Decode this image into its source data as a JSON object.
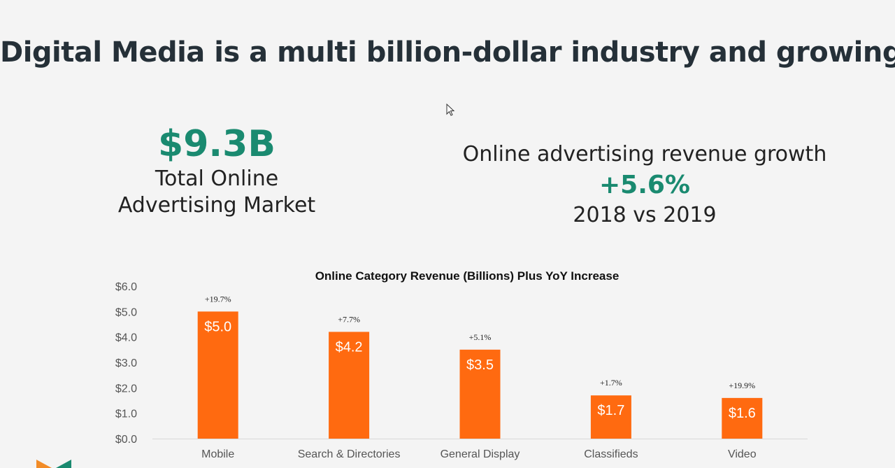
{
  "slide": {
    "title": "Digital Media is a multi billion-dollar industry and growing",
    "market_value": "$9.3B",
    "market_label_line1": "Total Online",
    "market_label_line2": "Advertising Market",
    "growth_heading": "Online advertising revenue growth",
    "growth_value": "+5.6%",
    "growth_period": "2018 vs 2019"
  },
  "colors": {
    "bar": "#ff6a10",
    "accent": "#1a8a70",
    "logo_orange": "#f28c28",
    "logo_teal": "#1a8a70"
  },
  "chart_data": {
    "type": "bar",
    "title": "Online Category Revenue (Billions) Plus YoY Increase",
    "xlabel": "",
    "ylabel": "",
    "categories": [
      "Mobile",
      "Search & Directories",
      "General Display",
      "Classifieds",
      "Video"
    ],
    "values": [
      5.0,
      4.2,
      3.5,
      1.7,
      1.6
    ],
    "value_labels": [
      "$5.0",
      "$4.2",
      "$3.5",
      "$1.7",
      "$1.6"
    ],
    "yoy_labels": [
      "+19.7%",
      "+7.7%",
      "+5.1%",
      "+1.7%",
      "+19.9%"
    ],
    "ylim": [
      0,
      6
    ],
    "yticks": [
      0,
      1,
      2,
      3,
      4,
      5,
      6
    ],
    "ytick_labels": [
      "$0.0",
      "$1.0",
      "$2.0",
      "$3.0",
      "$4.0",
      "$5.0",
      "$6.0"
    ],
    "grid": false,
    "legend": "none"
  }
}
